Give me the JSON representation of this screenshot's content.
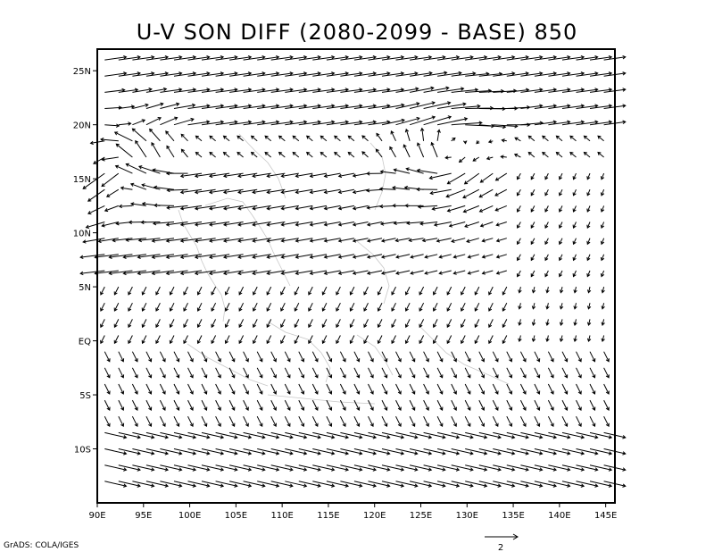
{
  "chart_data": {
    "type": "vector-field",
    "title": "U-V SON DIFF (2080-2099 - BASE) 850",
    "xlim": [
      90,
      146
    ],
    "ylim": [
      -15,
      27
    ],
    "x_ticks": [
      {
        "value": 90,
        "label": "90E"
      },
      {
        "value": 95,
        "label": "95E"
      },
      {
        "value": 100,
        "label": "100E"
      },
      {
        "value": 105,
        "label": "105E"
      },
      {
        "value": 110,
        "label": "110E"
      },
      {
        "value": 115,
        "label": "115E"
      },
      {
        "value": 120,
        "label": "120E"
      },
      {
        "value": 125,
        "label": "125E"
      },
      {
        "value": 130,
        "label": "130E"
      },
      {
        "value": 135,
        "label": "135E"
      },
      {
        "value": 140,
        "label": "140E"
      },
      {
        "value": 145,
        "label": "145E"
      }
    ],
    "y_ticks": [
      {
        "value": 25,
        "label": "25N"
      },
      {
        "value": 20,
        "label": "20N"
      },
      {
        "value": 15,
        "label": "15N"
      },
      {
        "value": 10,
        "label": "10N"
      },
      {
        "value": 5,
        "label": "5N"
      },
      {
        "value": 0,
        "label": "EQ"
      },
      {
        "value": -5,
        "label": "5S"
      },
      {
        "value": -10,
        "label": "10S"
      }
    ],
    "reference_vector": {
      "label": "2",
      "magnitude": 2
    },
    "credit": "GrADS: COLA/IGES",
    "background_map": "coastlines"
  }
}
